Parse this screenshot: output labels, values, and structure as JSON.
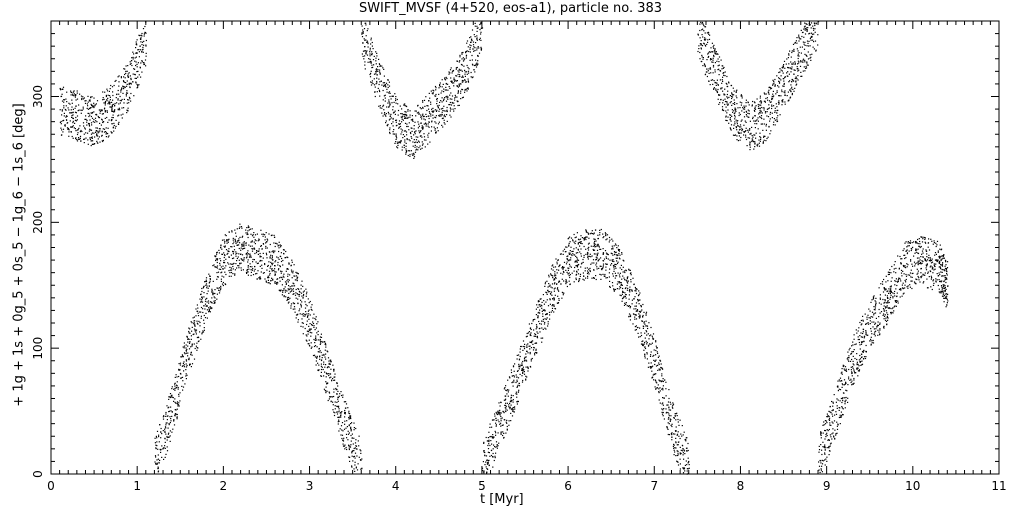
{
  "chart_data": {
    "type": "scatter",
    "title": "SWIFT_MVSF (4+520, eos-a1), particle no. 383",
    "xlabel": "t [Myr]",
    "ylabel": "+ 1g + 1s + 0g_5 + 0s_5 − 1g_6 − 1s_6 [deg]",
    "xlim": [
      0,
      11
    ],
    "ylim": [
      0,
      360
    ],
    "xticks": [
      0,
      1,
      2,
      3,
      4,
      5,
      6,
      7,
      8,
      9,
      10,
      11
    ],
    "yticks": [
      0,
      100,
      200,
      300
    ],
    "grid": false,
    "series": [
      {
        "marker": "dot",
        "color": "#000000",
        "x": [
          0.1,
          0.3,
          0.5,
          0.7,
          0.9,
          1.1,
          1.2,
          1.4,
          1.6,
          1.8,
          2.0,
          2.2,
          2.4,
          2.6,
          2.8,
          3.0,
          3.2,
          3.4,
          3.6,
          3.6,
          3.8,
          4.0,
          4.2,
          4.4,
          4.6,
          4.8,
          5.0,
          5.0,
          5.2,
          5.4,
          5.6,
          5.8,
          6.0,
          6.2,
          6.4,
          6.6,
          6.8,
          7.0,
          7.2,
          7.4,
          7.5,
          7.7,
          7.9,
          8.1,
          8.3,
          8.5,
          8.7,
          8.9,
          8.9,
          9.1,
          9.3,
          9.5,
          9.7,
          9.9,
          10.1,
          10.3,
          10.4
        ],
        "y": [
          290,
          285,
          280,
          290,
          310,
          345,
          10,
          50,
          100,
          140,
          170,
          180,
          175,
          170,
          150,
          120,
          80,
          40,
          5,
          350,
          310,
          280,
          270,
          285,
          300,
          320,
          355,
          5,
          40,
          75,
          110,
          145,
          170,
          175,
          175,
          160,
          130,
          90,
          40,
          5,
          350,
          320,
          290,
          275,
          285,
          310,
          335,
          360,
          10,
          50,
          90,
          120,
          140,
          165,
          170,
          165,
          150
        ]
      }
    ]
  }
}
